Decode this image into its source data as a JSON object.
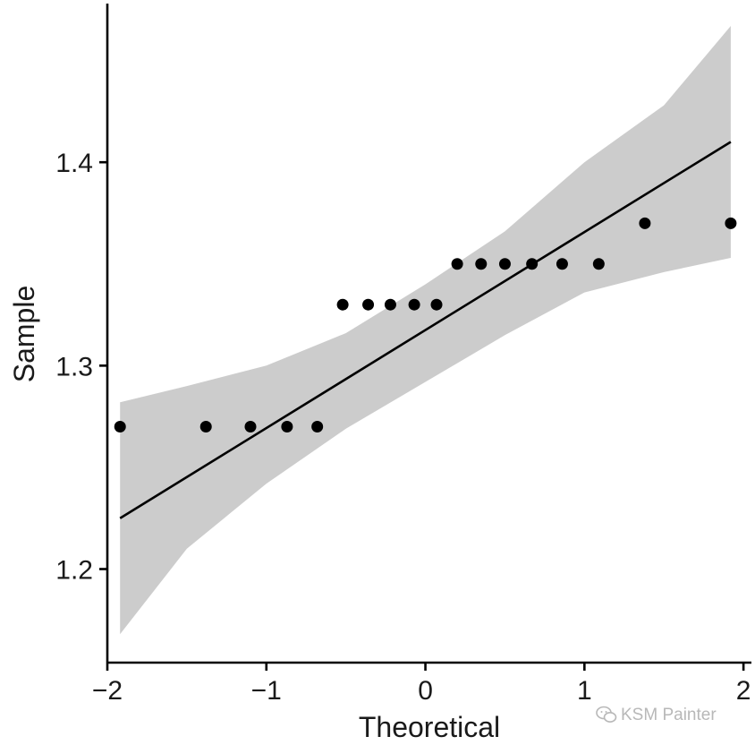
{
  "chart_data": {
    "type": "scatter",
    "subtype": "qq-plot",
    "title": "",
    "xlabel": "Theoretical",
    "ylabel": "Sample",
    "xlim": [
      -2.0,
      2.05
    ],
    "ylim": [
      1.154,
      1.478
    ],
    "x_ticks": [
      -2,
      -1,
      0,
      1,
      2
    ],
    "x_tick_labels": [
      "−2",
      "−1",
      "0",
      "1",
      "2"
    ],
    "y_ticks": [
      1.2,
      1.3,
      1.4
    ],
    "y_tick_labels": [
      "1.2",
      "1.3",
      "1.4"
    ],
    "grid": false,
    "points": {
      "x": [
        -1.92,
        -1.38,
        -1.1,
        -0.87,
        -0.68,
        -0.52,
        -0.36,
        -0.22,
        -0.07,
        0.07,
        0.2,
        0.35,
        0.5,
        0.67,
        0.86,
        1.09,
        1.38,
        1.92
      ],
      "y": [
        1.27,
        1.27,
        1.27,
        1.27,
        1.27,
        1.33,
        1.33,
        1.33,
        1.33,
        1.33,
        1.35,
        1.35,
        1.35,
        1.35,
        1.35,
        1.35,
        1.37,
        1.37
      ]
    },
    "reference_line": {
      "x": [
        -1.92,
        1.92
      ],
      "y": [
        1.225,
        1.41
      ]
    },
    "confidence_band": {
      "x": [
        -1.92,
        -1.5,
        -1.0,
        -0.5,
        0.0,
        0.5,
        1.0,
        1.5,
        1.92
      ],
      "lower": [
        1.168,
        1.21,
        1.242,
        1.269,
        1.292,
        1.315,
        1.336,
        1.346,
        1.353
      ],
      "upper": [
        1.282,
        1.29,
        1.3,
        1.316,
        1.34,
        1.366,
        1.4,
        1.428,
        1.467
      ]
    },
    "colors": {
      "points": "#000000",
      "line": "#000000",
      "band": "#cccccc",
      "axis": "#000000"
    }
  },
  "watermark": {
    "text": "KSM Painter",
    "icon": "wechat-icon",
    "color": "#b8b8b8"
  }
}
